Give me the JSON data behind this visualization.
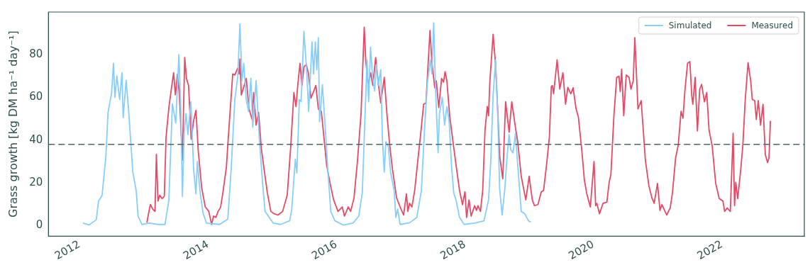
{
  "chart_data": {
    "type": "line",
    "ylabel": "Grass growth [kg DM ha⁻¹ day⁻¹]",
    "legend": "top right",
    "xlim": [
      "2011-07-08",
      "2023-04-15"
    ],
    "xticks": [
      "2012",
      "2014",
      "2016",
      "2018",
      "2020",
      "2022"
    ],
    "ylim": [
      -5,
      100
    ],
    "yticks": [
      0,
      20,
      40,
      60,
      80
    ],
    "ref_lines": [
      {
        "axis": "y",
        "value": 38,
        "color": "#4f6466",
        "line_style": "dashed"
      }
    ],
    "series": [
      {
        "name": "Simulated",
        "color": "#87cefa",
        "x": [
          "2012-01-20",
          "2012-02-25",
          "2012-04-05",
          "2012-04-18",
          "2012-05-08",
          "2012-05-30",
          "2012-06-11",
          "2012-07-01",
          "2012-07-12",
          "2012-07-20",
          "2012-07-31",
          "2012-08-16",
          "2012-08-29",
          "2012-09-05",
          "2012-09-22",
          "2012-10-05",
          "2012-10-30",
          "2012-11-18",
          "2012-11-29",
          "2012-12-21",
          "2013-01-30",
          "2013-03-24",
          "2013-05-01",
          "2013-05-23",
          "2013-06-12",
          "2013-07-01",
          "2013-07-19",
          "2013-07-30",
          "2013-08-08",
          "2013-08-18",
          "2013-08-29",
          "2013-09-08",
          "2013-09-25",
          "2013-10-11",
          "2013-10-24",
          "2013-11-01",
          "2013-11-17",
          "2013-12-03",
          "2013-12-23",
          "2014-03-07",
          "2014-04-23",
          "2014-05-12",
          "2014-06-02",
          "2014-06-19",
          "2014-07-01",
          "2014-07-13",
          "2014-07-23",
          "2014-08-06",
          "2014-08-19",
          "2014-09-01",
          "2014-09-12",
          "2014-10-01",
          "2014-10-20",
          "2014-11-08",
          "2014-11-21",
          "2015-01-07",
          "2015-02-17",
          "2015-04-10",
          "2015-04-22",
          "2015-05-12",
          "2015-05-21",
          "2015-06-04",
          "2015-06-14",
          "2015-06-30",
          "2015-07-16",
          "2015-07-27",
          "2015-08-15",
          "2015-08-24",
          "2015-09-03",
          "2015-09-11",
          "2015-09-20",
          "2015-09-27",
          "2015-10-13",
          "2015-10-30",
          "2015-11-13",
          "2015-11-30",
          "2015-12-23",
          "2016-02-09",
          "2016-04-04",
          "2016-05-07",
          "2016-05-27",
          "2016-06-10",
          "2016-06-23",
          "2016-07-02",
          "2016-07-13",
          "2016-07-24",
          "2016-08-05",
          "2016-08-15",
          "2016-08-26",
          "2016-09-09",
          "2016-09-18",
          "2016-09-29",
          "2016-10-08",
          "2016-10-22",
          "2016-11-04",
          "2016-11-24",
          "2016-12-04",
          "2016-12-14",
          "2016-12-28",
          "2017-02-21",
          "2017-04-02",
          "2017-04-28",
          "2017-05-18",
          "2017-06-01",
          "2017-06-18",
          "2017-06-27",
          "2017-07-07",
          "2017-07-17",
          "2017-08-01",
          "2017-08-09",
          "2017-08-25",
          "2017-09-07",
          "2017-09-20",
          "2017-10-03",
          "2017-10-16",
          "2017-10-29",
          "2017-11-11",
          "2017-12-01",
          "2017-12-27",
          "2018-02-25",
          "2018-04-19",
          "2018-05-15",
          "2018-05-28",
          "2018-06-10",
          "2018-06-24",
          "2018-07-07",
          "2018-07-17",
          "2018-07-31",
          "2018-08-16",
          "2018-08-29",
          "2018-09-09",
          "2018-09-18",
          "2018-10-01",
          "2018-10-15",
          "2018-10-28",
          "2018-11-17",
          "2018-12-07",
          "2018-12-28",
          "2019-01-11"
        ],
        "values": [
          1.1,
          0.3,
          2.7,
          11.5,
          14,
          32.8,
          53,
          62,
          76,
          60,
          70,
          59,
          71.6,
          50.5,
          68,
          55,
          25,
          16.4,
          4.4,
          0.5,
          1.1,
          0.5,
          0.5,
          12,
          57,
          48,
          80,
          53.5,
          13.7,
          43.7,
          52.5,
          42.6,
          58,
          26,
          14.8,
          30,
          15.3,
          6,
          1.1,
          0.5,
          3,
          26,
          59,
          70,
          94.5,
          67.8,
          76,
          59,
          53.5,
          69,
          46,
          67.8,
          40,
          18.6,
          6.6,
          1.1,
          0.5,
          2.2,
          7.7,
          31,
          24.6,
          59,
          58,
          91,
          72,
          53.5,
          86,
          71,
          86,
          73,
          88,
          48.6,
          66,
          44.8,
          26,
          6.6,
          2.2,
          0.2,
          1.1,
          4.4,
          15.3,
          48,
          77.6,
          58,
          83.6,
          70,
          63,
          75.4,
          65.6,
          73,
          41.5,
          25,
          39.3,
          37,
          25,
          16.4,
          3.8,
          7.7,
          0.5,
          1.3,
          3.8,
          16.4,
          48,
          66.7,
          77.6,
          71,
          95,
          65.6,
          34,
          52.5,
          60,
          47,
          55.7,
          49,
          28.4,
          15.3,
          12,
          3.8,
          0.5,
          1.1,
          2.2,
          12,
          30.6,
          61,
          77.6,
          50.3,
          17.5,
          4.9,
          17.5,
          32.8,
          42.6,
          35.5,
          34,
          43,
          28.4,
          6.6,
          5.5,
          2.2,
          1.6
        ]
      },
      {
        "name": "Measured",
        "color": "#e34a67",
        "x": [
          "2013-01-18",
          "2013-01-27",
          "2013-02-07",
          "2013-02-20",
          "2013-03-05",
          "2013-03-13",
          "2013-03-22",
          "2013-04-01",
          "2013-04-14",
          "2013-04-27",
          "2013-05-07",
          "2013-05-23",
          "2013-06-05",
          "2013-06-19",
          "2013-06-29",
          "2013-07-11",
          "2013-07-21",
          "2013-08-08",
          "2013-08-21",
          "2013-08-31",
          "2013-09-12",
          "2013-09-27",
          "2013-10-11",
          "2013-10-24",
          "2013-11-06",
          "2013-11-26",
          "2013-12-16",
          "2014-01-05",
          "2014-01-21",
          "2014-02-01",
          "2014-02-14",
          "2014-02-27",
          "2014-03-13",
          "2014-03-26",
          "2014-04-15",
          "2014-04-28",
          "2014-05-21",
          "2014-06-02",
          "2014-06-19",
          "2014-06-27",
          "2014-07-01",
          "2014-07-09",
          "2014-07-23",
          "2014-08-06",
          "2014-08-22",
          "2014-09-08",
          "2014-09-17",
          "2014-10-01",
          "2014-10-15",
          "2014-10-31",
          "2014-11-14",
          "2014-12-04",
          "2014-12-24",
          "2015-01-12",
          "2015-02-02",
          "2015-03-01",
          "2015-03-27",
          "2015-04-16",
          "2015-05-04",
          "2015-05-16",
          "2015-05-27",
          "2015-06-08",
          "2015-06-19",
          "2015-06-30",
          "2015-07-14",
          "2015-07-26",
          "2015-08-09",
          "2015-08-24",
          "2015-09-06",
          "2015-09-20",
          "2015-10-07",
          "2015-10-23",
          "2015-11-06",
          "2015-11-26",
          "2015-12-16",
          "2016-01-10",
          "2016-02-03",
          "2016-02-16",
          "2016-03-08",
          "2016-03-22",
          "2016-04-10",
          "2016-04-30",
          "2016-05-20",
          "2016-06-07",
          "2016-06-16",
          "2016-06-30",
          "2016-07-13",
          "2016-07-26",
          "2016-08-11",
          "2016-08-26",
          "2016-09-09",
          "2016-09-29",
          "2016-10-15",
          "2016-10-29",
          "2016-11-15",
          "2016-12-08",
          "2016-12-28",
          "2017-01-17",
          "2017-02-02",
          "2017-02-10",
          "2017-02-20",
          "2017-03-05",
          "2017-03-21",
          "2017-04-08",
          "2017-04-25",
          "2017-05-11",
          "2017-05-24",
          "2017-06-16",
          "2017-06-27",
          "2017-07-13",
          "2017-07-22",
          "2017-08-05",
          "2017-08-21",
          "2017-09-01",
          "2017-09-10",
          "2017-09-20",
          "2017-10-06",
          "2017-10-23",
          "2017-11-11",
          "2017-12-01",
          "2017-12-18",
          "2018-01-01",
          "2018-01-10",
          "2018-01-24",
          "2018-02-05",
          "2018-02-25",
          "2018-03-07",
          "2018-03-16",
          "2018-03-30",
          "2018-04-12",
          "2018-04-25",
          "2018-05-08",
          "2018-05-15",
          "2018-05-22",
          "2018-06-10",
          "2018-06-24",
          "2018-07-07",
          "2018-07-17",
          "2018-08-04",
          "2018-08-20",
          "2018-09-09",
          "2018-09-24",
          "2018-10-15",
          "2018-10-28",
          "2018-11-17",
          "2018-12-13",
          "2019-01-01",
          "2019-01-19",
          "2019-01-31",
          "2019-02-20",
          "2019-03-11",
          "2019-03-24",
          "2019-04-10",
          "2019-04-26",
          "2019-05-07",
          "2019-05-13",
          "2019-05-20",
          "2019-06-09",
          "2019-06-24",
          "2019-07-12",
          "2019-07-27",
          "2019-08-09",
          "2019-08-26",
          "2019-09-08",
          "2019-09-25",
          "2019-10-08",
          "2019-10-29",
          "2019-11-11",
          "2019-11-25",
          "2019-12-15",
          "2020-01-05",
          "2020-01-14",
          "2020-01-21",
          "2020-02-05",
          "2020-02-25",
          "2020-03-18",
          "2020-03-31",
          "2020-04-10",
          "2020-04-27",
          "2020-05-13",
          "2020-05-26",
          "2020-06-02",
          "2020-06-10",
          "2020-06-22",
          "2020-07-06",
          "2020-07-22",
          "2020-08-02",
          "2020-08-15",
          "2020-08-24",
          "2020-09-11",
          "2020-09-29",
          "2020-10-10",
          "2020-10-23",
          "2020-11-12",
          "2020-11-29",
          "2020-12-12",
          "2020-12-31",
          "2021-01-14",
          "2021-01-25",
          "2021-02-21",
          "2021-03-13",
          "2021-03-26",
          "2021-04-13",
          "2021-04-28",
          "2021-05-14",
          "2021-05-25",
          "2021-06-05",
          "2021-06-20",
          "2021-07-03",
          "2021-07-14",
          "2021-07-20",
          "2021-08-02",
          "2021-08-15",
          "2021-08-28",
          "2021-09-08",
          "2021-09-24",
          "2021-10-07",
          "2021-10-20",
          "2021-11-07",
          "2021-11-27",
          "2021-12-17",
          "2022-01-07",
          "2022-01-17",
          "2022-01-31",
          "2022-02-18",
          "2022-03-06",
          "2022-03-14",
          "2022-03-21",
          "2022-04-01",
          "2022-04-17",
          "2022-04-30",
          "2022-05-14",
          "2022-05-30",
          "2022-06-14",
          "2022-06-23",
          "2022-07-07",
          "2022-07-16",
          "2022-07-27",
          "2022-08-09",
          "2022-08-23",
          "2022-09-05",
          "2022-09-18",
          "2022-09-26",
          "2022-10-04"
        ],
        "values": [
          1.3,
          5.5,
          9.8,
          7.7,
          6.6,
          33.3,
          11.5,
          14.2,
          12.6,
          13.7,
          41.5,
          55.2,
          63.4,
          71.6,
          61.2,
          71,
          62.3,
          30.6,
          78.7,
          68.9,
          65.6,
          40.4,
          49.2,
          54,
          35,
          17.5,
          8.7,
          6.6,
          0.5,
          4.4,
          3.8,
          6.6,
          8.5,
          15.3,
          27.3,
          43.7,
          71,
          70.5,
          73.8,
          71,
          78,
          61.2,
          65,
          68.9,
          54.6,
          49.7,
          62.3,
          47,
          53,
          36,
          27.3,
          15.3,
          6.6,
          5.5,
          4.9,
          6.6,
          14.2,
          37,
          62.3,
          55.7,
          66.7,
          76,
          65.6,
          74.3,
          75.4,
          71,
          59.6,
          62.8,
          65.6,
          54.6,
          53.5,
          40.4,
          28.4,
          19.7,
          12,
          6.6,
          8.7,
          4.4,
          8.7,
          6.6,
          13,
          30.6,
          52.5,
          92.9,
          77,
          65.6,
          71.6,
          65.6,
          78.7,
          66.7,
          57.4,
          69.4,
          51.4,
          38.3,
          26.2,
          13,
          8.7,
          4.9,
          14.8,
          6.6,
          10.4,
          8.7,
          16.4,
          30.6,
          43.7,
          56.8,
          57.4,
          91.3,
          76.5,
          64.5,
          67.8,
          55.2,
          68.9,
          67.2,
          72.1,
          67.8,
          51.4,
          40.4,
          28.4,
          16.4,
          9.8,
          15.8,
          3.8,
          12,
          4.4,
          9.3,
          7.1,
          9.3,
          6.6,
          16.4,
          44.8,
          55.7,
          51.4,
          66.7,
          89.6,
          75.4,
          52.5,
          32.8,
          21.9,
          58,
          43.7,
          58,
          45.9,
          39.3,
          23,
          12,
          23,
          12,
          9.3,
          9.8,
          15.8,
          16.4,
          28.4,
          41.5,
          65,
          65.6,
          61.7,
          77.6,
          63.9,
          71.6,
          56.8,
          64.7,
          61.7,
          64.5,
          54.6,
          50.8,
          33.9,
          21.3,
          14.8,
          8.7,
          30,
          9.3,
          10.4,
          5.5,
          10.4,
          10.9,
          20.2,
          24,
          51.4,
          69.4,
          69.9,
          62.8,
          73.2,
          51.4,
          70.5,
          69.4,
          63.9,
          67.8,
          88,
          54.6,
          58.5,
          45.9,
          30.6,
          18.6,
          13,
          10.4,
          19.7,
          7.1,
          9.8,
          4.9,
          8.2,
          15.3,
          31.7,
          37.7,
          53.5,
          50.3,
          63.4,
          76,
          76.8,
          60.6,
          56.8,
          69.4,
          44.3,
          63.9,
          66.1,
          57.9,
          62.3,
          44.8,
          37.2,
          19.7,
          12.6,
          11.5,
          6.6,
          8.2,
          6.6,
          43.2,
          9.3,
          20.2,
          12.6,
          25.1,
          37.2,
          59,
          76.3,
          67.8,
          59,
          58.5,
          49.7,
          58.5,
          47,
          56.8,
          33.3,
          29.5,
          31.7,
          49
        ]
      }
    ]
  }
}
